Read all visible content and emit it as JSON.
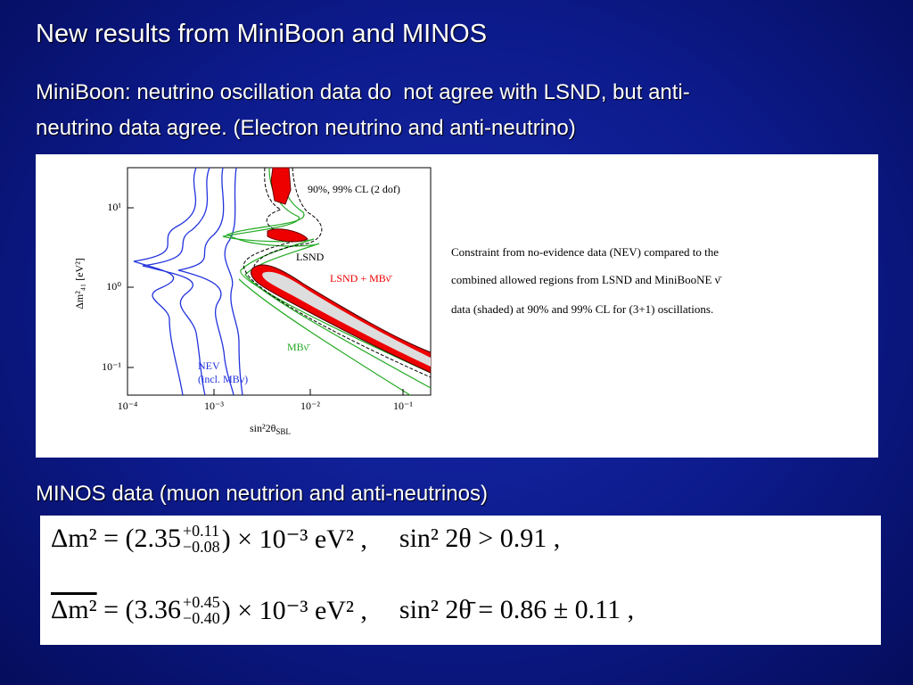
{
  "slide": {
    "title": "New results from MiniBoon and MINOS",
    "paragraph_lines": [
      "MiniBoon: neutrino oscillation data do  not agree with LSND, but anti-",
      "neutrino data agree. (Electron neutrino and anti-neutrino)"
    ],
    "figure": {
      "x_tick_labels": [
        "10⁻⁴",
        "10⁻³",
        "10⁻²",
        "10⁻¹"
      ],
      "y_tick_labels": [
        "10¹",
        "10⁰",
        "10⁻¹"
      ],
      "x_label": "sin²2θ",
      "x_label_sub": "SBL",
      "y_label": "Δm²₄₁ [eV²]",
      "legend_cl": "90%, 99% CL (2 dof)",
      "label_lsnd": "LSND",
      "label_lsnd_mb": "LSND + MBν̄",
      "label_mb": "MBν̄",
      "label_nev": "NEV",
      "label_nev_incl": "(incl. MBν)",
      "caption_lines": [
        "Constraint from no-evidence data (NEV) compared to the",
        "combined allowed regions from LSND  and MiniBooNE ν̄",
        "data (shaded) at 90% and 99% CL for (3+1) oscillations."
      ]
    },
    "minos_heading": "MINOS data (muon neutrion and anti-neutrinos)",
    "equations": [
      {
        "lhs": "Δm² = (2.35",
        "plus": "+0.11",
        "minus": "−0.08",
        "factor": ") × 10⁻³ eV² ,",
        "rhs": "sin² 2θ > 0.91 ,"
      },
      {
        "lhs": "Δm²",
        "mid": " = (3.36",
        "plus": "+0.45",
        "minus": "−0.40",
        "factor": ") × 10⁻³ eV² ,",
        "rhs": "sin² 2θ̄ = 0.86 ± 0.11 ,"
      }
    ]
  }
}
